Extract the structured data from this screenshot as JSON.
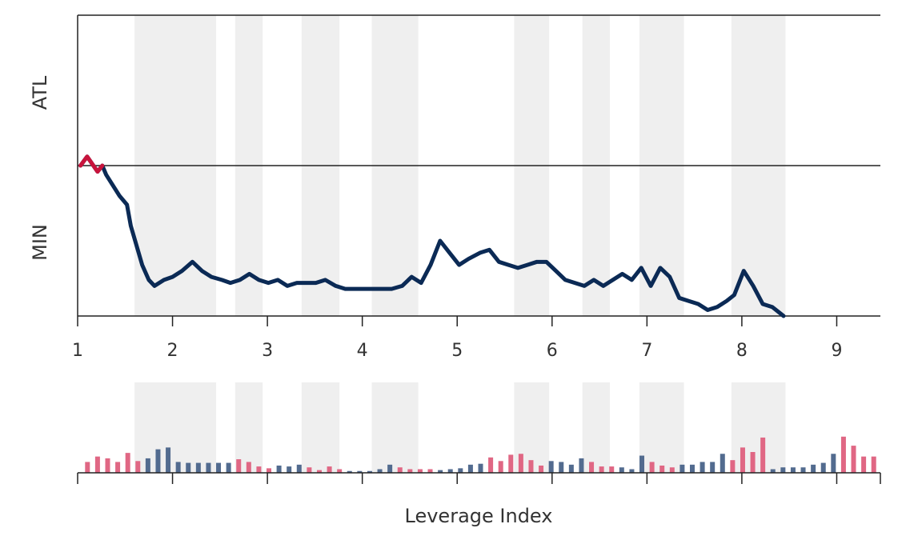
{
  "chart_data": {
    "type": "line",
    "xlabel": "Leverage Index",
    "y_tick_labels": [
      "ATL",
      "MIN"
    ],
    "x_ticks": [
      1,
      2,
      3,
      4,
      5,
      6,
      7,
      8,
      9
    ],
    "x_tick_labels": [
      "1",
      "2",
      "3",
      "4",
      "5",
      "6",
      "7",
      "8",
      "9"
    ],
    "xlim": [
      1,
      9.46
    ],
    "ylim": [
      0,
      1
    ],
    "min_level": 0.5,
    "shaded_ranges": [
      [
        1.6,
        2.46
      ],
      [
        2.66,
        2.95
      ],
      [
        3.36,
        3.76
      ],
      [
        4.1,
        4.59
      ],
      [
        5.6,
        5.97
      ],
      [
        6.32,
        6.61
      ],
      [
        6.92,
        7.39
      ],
      [
        7.89,
        8.46
      ]
    ],
    "series": [
      {
        "values": [
          [
            1.03,
            0.5
          ],
          [
            1.1,
            0.53
          ],
          [
            1.21,
            0.48
          ],
          [
            1.26,
            0.5
          ],
          [
            1.3,
            0.47
          ],
          [
            1.44,
            0.4
          ],
          [
            1.52,
            0.37
          ],
          [
            1.56,
            0.3
          ],
          [
            1.68,
            0.17
          ],
          [
            1.75,
            0.12
          ],
          [
            1.81,
            0.1
          ],
          [
            1.91,
            0.12
          ],
          [
            2.0,
            0.13
          ],
          [
            2.1,
            0.15
          ],
          [
            2.21,
            0.18
          ],
          [
            2.31,
            0.15
          ],
          [
            2.41,
            0.13
          ],
          [
            2.52,
            0.12
          ],
          [
            2.61,
            0.11
          ],
          [
            2.71,
            0.12
          ],
          [
            2.81,
            0.14
          ],
          [
            2.91,
            0.12
          ],
          [
            3.01,
            0.11
          ],
          [
            3.11,
            0.12
          ],
          [
            3.21,
            0.1
          ],
          [
            3.31,
            0.11
          ],
          [
            3.41,
            0.11
          ],
          [
            3.51,
            0.11
          ],
          [
            3.61,
            0.12
          ],
          [
            3.72,
            0.1
          ],
          [
            3.82,
            0.09
          ],
          [
            3.92,
            0.09
          ],
          [
            4.02,
            0.09
          ],
          [
            4.12,
            0.09
          ],
          [
            4.22,
            0.09
          ],
          [
            4.31,
            0.09
          ],
          [
            4.42,
            0.1
          ],
          [
            4.52,
            0.13
          ],
          [
            4.62,
            0.11
          ],
          [
            4.72,
            0.17
          ],
          [
            4.82,
            0.25
          ],
          [
            4.92,
            0.21
          ],
          [
            5.02,
            0.17
          ],
          [
            5.12,
            0.19
          ],
          [
            5.24,
            0.21
          ],
          [
            5.34,
            0.22
          ],
          [
            5.44,
            0.18
          ],
          [
            5.54,
            0.17
          ],
          [
            5.64,
            0.16
          ],
          [
            5.74,
            0.17
          ],
          [
            5.84,
            0.18
          ],
          [
            5.94,
            0.18
          ],
          [
            6.04,
            0.15
          ],
          [
            6.14,
            0.12
          ],
          [
            6.24,
            0.11
          ],
          [
            6.34,
            0.1
          ],
          [
            6.44,
            0.12
          ],
          [
            6.54,
            0.1
          ],
          [
            6.64,
            0.12
          ],
          [
            6.74,
            0.14
          ],
          [
            6.84,
            0.12
          ],
          [
            6.94,
            0.16
          ],
          [
            7.04,
            0.1
          ],
          [
            7.14,
            0.16
          ],
          [
            7.24,
            0.13
          ],
          [
            7.34,
            0.06
          ],
          [
            7.44,
            0.05
          ],
          [
            7.54,
            0.04
          ],
          [
            7.64,
            0.02
          ],
          [
            7.74,
            0.03
          ],
          [
            7.84,
            0.05
          ],
          [
            7.92,
            0.07
          ],
          [
            8.02,
            0.15
          ],
          [
            8.12,
            0.1
          ],
          [
            8.22,
            0.04
          ],
          [
            8.32,
            0.03
          ],
          [
            8.44,
            0.0
          ]
        ],
        "color": "#0b2a55"
      }
    ],
    "highlight": {
      "x_range": [
        1.03,
        1.26
      ],
      "color": "#c8143c"
    },
    "bar_panel": {
      "colors": {
        "up": "#e06784",
        "down": "#526b8f"
      },
      "values": [
        [
          0.12,
          "up"
        ],
        [
          0.18,
          "up"
        ],
        [
          0.16,
          "up"
        ],
        [
          0.12,
          "up"
        ],
        [
          0.22,
          "up"
        ],
        [
          0.13,
          "up"
        ],
        [
          0.16,
          "down"
        ],
        [
          0.26,
          "down"
        ],
        [
          0.28,
          "down"
        ],
        [
          0.12,
          "down"
        ],
        [
          0.11,
          "down"
        ],
        [
          0.11,
          "down"
        ],
        [
          0.11,
          "down"
        ],
        [
          0.11,
          "down"
        ],
        [
          0.11,
          "down"
        ],
        [
          0.15,
          "up"
        ],
        [
          0.12,
          "up"
        ],
        [
          0.07,
          "up"
        ],
        [
          0.05,
          "up"
        ],
        [
          0.08,
          "down"
        ],
        [
          0.07,
          "down"
        ],
        [
          0.09,
          "down"
        ],
        [
          0.06,
          "up"
        ],
        [
          0.03,
          "up"
        ],
        [
          0.07,
          "up"
        ],
        [
          0.04,
          "up"
        ],
        [
          0.02,
          "down"
        ],
        [
          0.02,
          "down"
        ],
        [
          0.02,
          "down"
        ],
        [
          0.04,
          "down"
        ],
        [
          0.09,
          "down"
        ],
        [
          0.06,
          "up"
        ],
        [
          0.04,
          "up"
        ],
        [
          0.04,
          "up"
        ],
        [
          0.04,
          "up"
        ],
        [
          0.03,
          "down"
        ],
        [
          0.04,
          "down"
        ],
        [
          0.05,
          "down"
        ],
        [
          0.09,
          "down"
        ],
        [
          0.1,
          "down"
        ],
        [
          0.17,
          "up"
        ],
        [
          0.13,
          "up"
        ],
        [
          0.2,
          "up"
        ],
        [
          0.21,
          "up"
        ],
        [
          0.14,
          "up"
        ],
        [
          0.08,
          "up"
        ],
        [
          0.13,
          "down"
        ],
        [
          0.12,
          "down"
        ],
        [
          0.09,
          "down"
        ],
        [
          0.16,
          "down"
        ],
        [
          0.12,
          "up"
        ],
        [
          0.07,
          "up"
        ],
        [
          0.07,
          "up"
        ],
        [
          0.06,
          "down"
        ],
        [
          0.04,
          "down"
        ],
        [
          0.19,
          "down"
        ],
        [
          0.12,
          "up"
        ],
        [
          0.08,
          "up"
        ],
        [
          0.06,
          "up"
        ],
        [
          0.09,
          "down"
        ],
        [
          0.09,
          "down"
        ],
        [
          0.12,
          "down"
        ],
        [
          0.12,
          "down"
        ],
        [
          0.21,
          "down"
        ],
        [
          0.14,
          "up"
        ],
        [
          0.28,
          "up"
        ],
        [
          0.23,
          "up"
        ],
        [
          0.39,
          "up"
        ],
        [
          0.04,
          "down"
        ],
        [
          0.06,
          "down"
        ],
        [
          0.06,
          "down"
        ],
        [
          0.06,
          "down"
        ],
        [
          0.09,
          "down"
        ],
        [
          0.11,
          "down"
        ],
        [
          0.21,
          "down"
        ],
        [
          0.4,
          "up"
        ],
        [
          0.3,
          "up"
        ],
        [
          0.18,
          "up"
        ],
        [
          0.18,
          "up"
        ]
      ]
    }
  },
  "colors": {
    "shade": "#efefef",
    "axis": "#333333",
    "grid": "#222222"
  }
}
